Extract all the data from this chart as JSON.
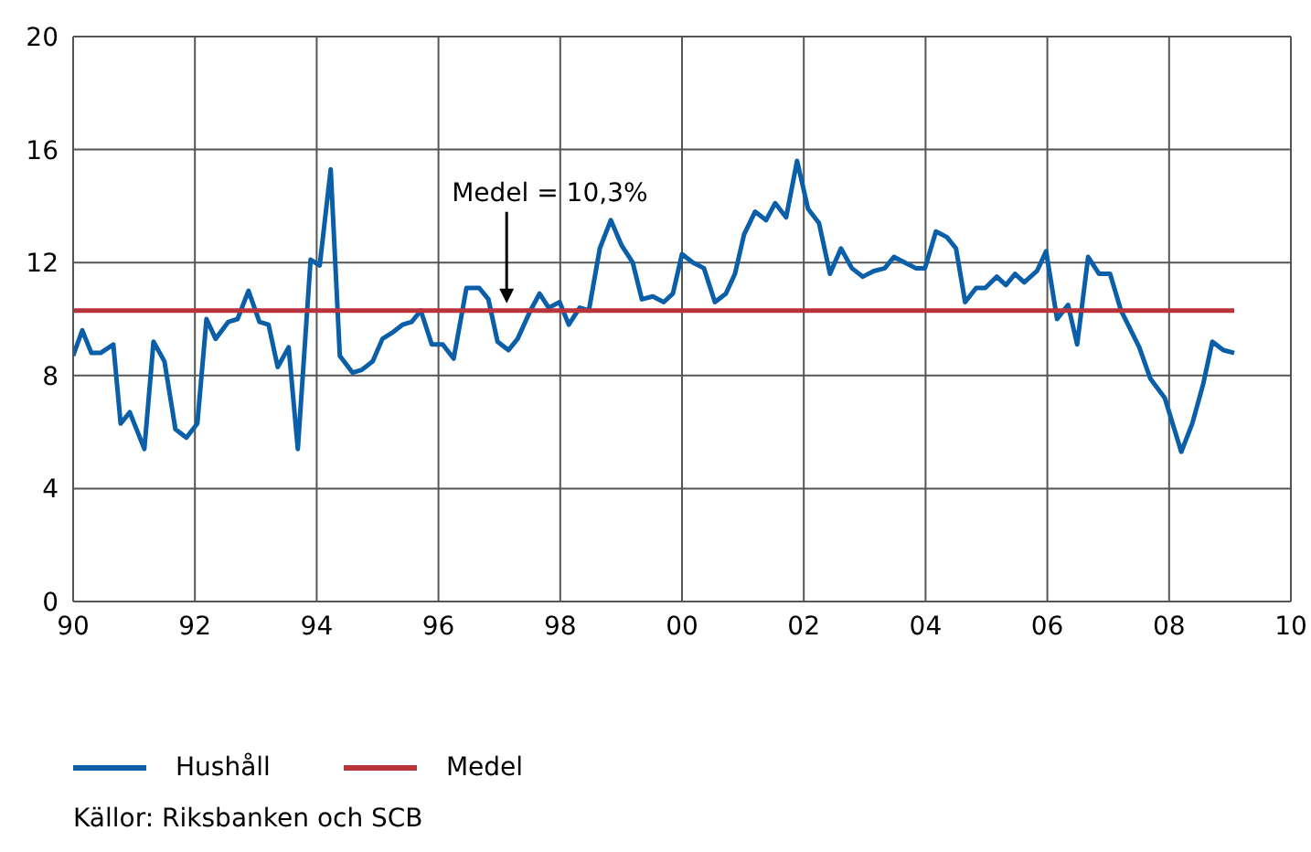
{
  "chart_data": {
    "type": "line",
    "xlim": [
      1990,
      2010
    ],
    "xticks": [
      {
        "value": 1990,
        "label": "90"
      },
      {
        "value": 1992,
        "label": "92"
      },
      {
        "value": 1994,
        "label": "94"
      },
      {
        "value": 1996,
        "label": "96"
      },
      {
        "value": 1998,
        "label": "98"
      },
      {
        "value": 2000,
        "label": "00"
      },
      {
        "value": 2002,
        "label": "02"
      },
      {
        "value": 2004,
        "label": "04"
      },
      {
        "value": 2006,
        "label": "06"
      },
      {
        "value": 2008,
        "label": "08"
      },
      {
        "value": 2010,
        "label": "10"
      }
    ],
    "ylim": [
      0,
      20
    ],
    "yticks": [
      0,
      4,
      8,
      12,
      16,
      20
    ],
    "grid": true,
    "legend": "bottom",
    "marker": "none",
    "line_style": "solid",
    "annotations": [
      {
        "text": "Medel = 10,3%",
        "x": 1997.12,
        "y": 10.3
      },
      "Källor: Riksbanken och SCB"
    ],
    "series": [
      {
        "name": "Hushåll",
        "color": "#0a5fa8",
        "x": [
          1990.0,
          1990.15,
          1990.3,
          1990.45,
          1990.66,
          1990.78,
          1990.93,
          1991.17,
          1991.32,
          1991.5,
          1991.68,
          1991.86,
          1992.04,
          1992.19,
          1992.34,
          1992.55,
          1992.7,
          1992.88,
          1993.06,
          1993.21,
          1993.36,
          1993.54,
          1993.69,
          1993.9,
          1994.05,
          1994.23,
          1994.38,
          1994.59,
          1994.74,
          1994.92,
          1995.08,
          1995.23,
          1995.41,
          1995.56,
          1995.71,
          1995.89,
          1996.07,
          1996.25,
          1996.46,
          1996.67,
          1996.82,
          1996.97,
          1997.15,
          1997.3,
          1997.51,
          1997.66,
          1997.81,
          1997.99,
          1998.14,
          1998.32,
          1998.47,
          1998.65,
          1998.83,
          1999.01,
          1999.19,
          1999.34,
          1999.52,
          1999.7,
          1999.85,
          2000.0,
          2000.18,
          2000.36,
          2000.54,
          2000.72,
          2000.87,
          2001.02,
          2001.2,
          2001.38,
          2001.53,
          2001.71,
          2001.89,
          2002.07,
          2002.25,
          2002.43,
          2002.61,
          2002.79,
          2002.97,
          2003.15,
          2003.33,
          2003.48,
          2003.66,
          2003.84,
          2003.99,
          2004.17,
          2004.35,
          2004.5,
          2004.65,
          2004.83,
          2004.98,
          2005.17,
          2005.32,
          2005.47,
          2005.62,
          2005.83,
          2005.98,
          2006.16,
          2006.34,
          2006.49,
          2006.67,
          2006.85,
          2007.03,
          2007.21,
          2007.51,
          2007.69,
          2007.93,
          2008.2,
          2008.38,
          2008.56,
          2008.71,
          2008.89,
          2009.07
        ],
        "values": [
          8.7,
          9.6,
          8.8,
          8.8,
          9.1,
          6.3,
          6.7,
          5.4,
          9.2,
          8.5,
          6.1,
          5.8,
          6.3,
          10.0,
          9.3,
          9.9,
          10.0,
          11.0,
          9.9,
          9.8,
          8.3,
          9.0,
          5.4,
          12.1,
          11.9,
          15.3,
          8.7,
          8.1,
          8.2,
          8.5,
          9.3,
          9.5,
          9.8,
          9.9,
          10.3,
          9.1,
          9.1,
          8.6,
          11.1,
          11.1,
          10.7,
          9.2,
          8.9,
          9.3,
          10.3,
          10.9,
          10.4,
          10.6,
          9.8,
          10.4,
          10.3,
          12.5,
          13.5,
          12.6,
          12.0,
          10.7,
          10.8,
          10.6,
          10.9,
          12.3,
          12.0,
          11.8,
          10.6,
          10.9,
          11.6,
          13.0,
          13.8,
          13.5,
          14.1,
          13.6,
          15.6,
          13.9,
          13.4,
          11.6,
          12.5,
          11.8,
          11.5,
          11.7,
          11.8,
          12.2,
          12.0,
          11.8,
          11.8,
          13.1,
          12.9,
          12.5,
          10.6,
          11.1,
          11.1,
          11.5,
          11.2,
          11.6,
          11.3,
          11.7,
          12.4,
          10.0,
          10.5,
          9.1,
          12.2,
          11.6,
          11.6,
          10.3,
          9.0,
          7.9,
          7.2,
          5.3,
          6.3,
          7.7,
          9.2,
          8.9,
          8.8
        ]
      },
      {
        "name": "Medel",
        "color": "#b8333a",
        "x": [
          1990,
          2009.07
        ],
        "values": [
          10.3,
          10.3
        ]
      }
    ]
  }
}
